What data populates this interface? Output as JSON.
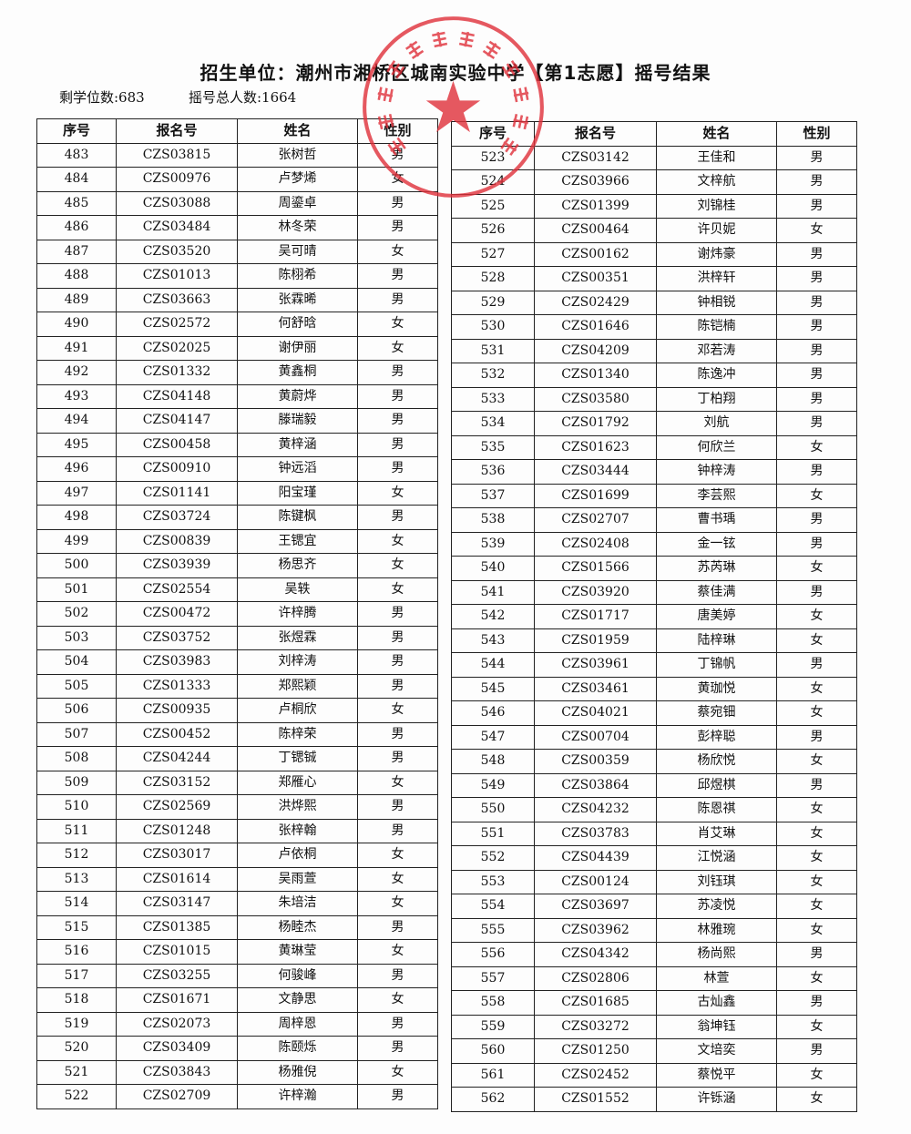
{
  "header": {
    "title": "招生单位：潮州市湘桥区城南实验中学【第1志愿】摇号结果",
    "remaining_label": "剩学位数:683",
    "total_label": "摇号总人数:1664"
  },
  "seal": {
    "text": "潮州市湘桥区城南实验中学",
    "color": "#e0303a"
  },
  "columns": [
    "序号",
    "报名号",
    "姓名",
    "性别"
  ],
  "left_rows": [
    [
      "483",
      "CZS03815",
      "张树哲",
      "男"
    ],
    [
      "484",
      "CZS00976",
      "卢梦烯",
      "女"
    ],
    [
      "485",
      "CZS03088",
      "周鎏卓",
      "男"
    ],
    [
      "486",
      "CZS03484",
      "林冬荣",
      "男"
    ],
    [
      "487",
      "CZS03520",
      "吴可晴",
      "女"
    ],
    [
      "488",
      "CZS01013",
      "陈栩希",
      "男"
    ],
    [
      "489",
      "CZS03663",
      "张霖晞",
      "男"
    ],
    [
      "490",
      "CZS02572",
      "何舒晗",
      "女"
    ],
    [
      "491",
      "CZS02025",
      "谢伊丽",
      "女"
    ],
    [
      "492",
      "CZS01332",
      "黄鑫桐",
      "男"
    ],
    [
      "493",
      "CZS04148",
      "黄蔚烨",
      "男"
    ],
    [
      "494",
      "CZS04147",
      "滕瑞毅",
      "男"
    ],
    [
      "495",
      "CZS00458",
      "黄梓涵",
      "男"
    ],
    [
      "496",
      "CZS00910",
      "钟远滔",
      "男"
    ],
    [
      "497",
      "CZS01141",
      "阳宝瑾",
      "女"
    ],
    [
      "498",
      "CZS03724",
      "陈键枫",
      "男"
    ],
    [
      "499",
      "CZS00839",
      "王锶宜",
      "女"
    ],
    [
      "500",
      "CZS03939",
      "杨思齐",
      "女"
    ],
    [
      "501",
      "CZS02554",
      "吴轶",
      "女"
    ],
    [
      "502",
      "CZS00472",
      "许梓腾",
      "男"
    ],
    [
      "503",
      "CZS03752",
      "张煜霖",
      "男"
    ],
    [
      "504",
      "CZS03983",
      "刘梓涛",
      "男"
    ],
    [
      "505",
      "CZS01333",
      "郑熙颖",
      "男"
    ],
    [
      "506",
      "CZS00935",
      "卢桐欣",
      "女"
    ],
    [
      "507",
      "CZS00452",
      "陈梓荣",
      "男"
    ],
    [
      "508",
      "CZS04244",
      "丁锶铖",
      "男"
    ],
    [
      "509",
      "CZS03152",
      "郑雁心",
      "女"
    ],
    [
      "510",
      "CZS02569",
      "洪烨熙",
      "男"
    ],
    [
      "511",
      "CZS01248",
      "张梓翰",
      "男"
    ],
    [
      "512",
      "CZS03017",
      "卢依桐",
      "女"
    ],
    [
      "513",
      "CZS01614",
      "吴雨萱",
      "女"
    ],
    [
      "514",
      "CZS03147",
      "朱培洁",
      "女"
    ],
    [
      "515",
      "CZS01385",
      "杨睦杰",
      "男"
    ],
    [
      "516",
      "CZS01015",
      "黄琳莹",
      "女"
    ],
    [
      "517",
      "CZS03255",
      "何骏峰",
      "男"
    ],
    [
      "518",
      "CZS01671",
      "文静思",
      "女"
    ],
    [
      "519",
      "CZS02073",
      "周梓恩",
      "男"
    ],
    [
      "520",
      "CZS03409",
      "陈颐烁",
      "男"
    ],
    [
      "521",
      "CZS03843",
      "杨雅倪",
      "女"
    ],
    [
      "522",
      "CZS02709",
      "许梓瀚",
      "男"
    ]
  ],
  "right_rows": [
    [
      "523",
      "CZS03142",
      "王佳和",
      "男"
    ],
    [
      "524",
      "CZS03966",
      "文梓航",
      "男"
    ],
    [
      "525",
      "CZS01399",
      "刘锦桂",
      "男"
    ],
    [
      "526",
      "CZS00464",
      "许贝妮",
      "女"
    ],
    [
      "527",
      "CZS00162",
      "谢炜豪",
      "男"
    ],
    [
      "528",
      "CZS00351",
      "洪梓轩",
      "男"
    ],
    [
      "529",
      "CZS02429",
      "钟相锐",
      "男"
    ],
    [
      "530",
      "CZS01646",
      "陈铠楠",
      "男"
    ],
    [
      "531",
      "CZS04209",
      "邓若涛",
      "男"
    ],
    [
      "532",
      "CZS01340",
      "陈逸冲",
      "男"
    ],
    [
      "533",
      "CZS03580",
      "丁柏翔",
      "男"
    ],
    [
      "534",
      "CZS01792",
      "刘航",
      "男"
    ],
    [
      "535",
      "CZS01623",
      "何欣兰",
      "女"
    ],
    [
      "536",
      "CZS03444",
      "钟梓涛",
      "男"
    ],
    [
      "537",
      "CZS01699",
      "李芸熙",
      "女"
    ],
    [
      "538",
      "CZS02707",
      "曹书瑀",
      "男"
    ],
    [
      "539",
      "CZS02408",
      "金一铉",
      "男"
    ],
    [
      "540",
      "CZS01566",
      "苏芮琳",
      "女"
    ],
    [
      "541",
      "CZS03920",
      "蔡佳满",
      "男"
    ],
    [
      "542",
      "CZS01717",
      "唐美婷",
      "女"
    ],
    [
      "543",
      "CZS01959",
      "陆梓琳",
      "女"
    ],
    [
      "544",
      "CZS03961",
      "丁锦帆",
      "男"
    ],
    [
      "545",
      "CZS03461",
      "黄珈悦",
      "女"
    ],
    [
      "546",
      "CZS04021",
      "蔡宛钿",
      "女"
    ],
    [
      "547",
      "CZS00704",
      "彭梓聪",
      "男"
    ],
    [
      "548",
      "CZS00359",
      "杨欣悦",
      "女"
    ],
    [
      "549",
      "CZS03864",
      "邱煜棋",
      "男"
    ],
    [
      "550",
      "CZS04232",
      "陈恩祺",
      "女"
    ],
    [
      "551",
      "CZS03783",
      "肖艾琳",
      "女"
    ],
    [
      "552",
      "CZS04439",
      "江悦涵",
      "女"
    ],
    [
      "553",
      "CZS00124",
      "刘钰琪",
      "女"
    ],
    [
      "554",
      "CZS03697",
      "苏凌悦",
      "女"
    ],
    [
      "555",
      "CZS03962",
      "林雅琬",
      "女"
    ],
    [
      "556",
      "CZS04342",
      "杨尚熙",
      "男"
    ],
    [
      "557",
      "CZS02806",
      "林萱",
      "女"
    ],
    [
      "558",
      "CZS01685",
      "古灿鑫",
      "男"
    ],
    [
      "559",
      "CZS03272",
      "翁坤钰",
      "女"
    ],
    [
      "560",
      "CZS01250",
      "文培奕",
      "男"
    ],
    [
      "561",
      "CZS02452",
      "蔡悦平",
      "女"
    ],
    [
      "562",
      "CZS01552",
      "许铄涵",
      "女"
    ]
  ]
}
